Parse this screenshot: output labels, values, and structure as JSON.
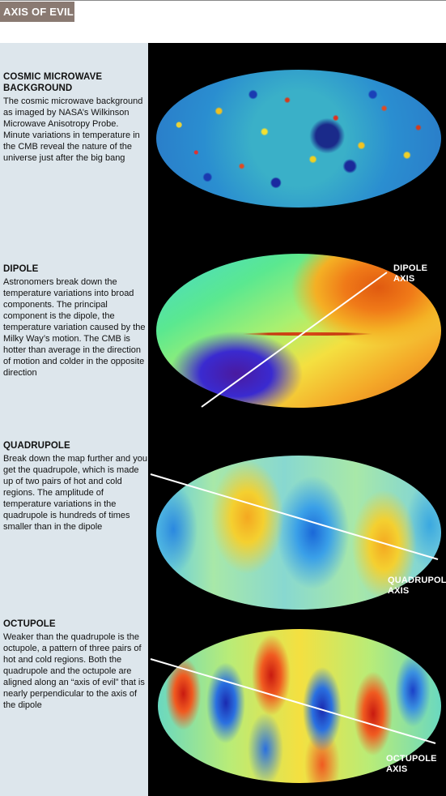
{
  "header": {
    "title": "AXIS OF EVIL"
  },
  "sections": [
    {
      "heading": "COSMIC MICROWAVE BACKGROUND",
      "body": "The cosmic microwave background as imaged by NASA’s Wilkinson Microwave Anisotropy Probe. Minute variations in temperature in the CMB reveal the nature of the universe just after the big bang"
    },
    {
      "heading": "DIPOLE",
      "body": "Astronomers break down the temperature variations into broad components. The principal component is the dipole, the temperature variation caused by the Milky Way’s motion. The CMB is hotter than average in the direction of motion and colder in the opposite direction",
      "axis_label": "DIPOLE AXIS"
    },
    {
      "heading": "QUADRUPOLE",
      "body": "Break down the map further and you get the quadrupole, which is made up of two pairs of hot and cold regions. The amplitude of temperature variations in the quadrupole is hundreds of times smaller than in the dipole",
      "axis_label_line1": "QUADRUPOLE",
      "axis_label_line2": "AXIS"
    },
    {
      "heading": "OCTUPOLE",
      "body": "Weaker than the quadrupole is the octupole, a pattern of three pairs of hot and cold regions. Both the quadrupole and the octupole are aligned along an “axis of evil” that is nearly perpendicular to the axis of the dipole",
      "axis_label_line1": "OCTUPOLE",
      "axis_label_line2": "AXIS"
    }
  ],
  "colors": {
    "title_tag": "#8a7a72",
    "left_panel": "#dde6ec",
    "right_panel": "#000000",
    "hot": "#d42a10",
    "warm": "#f4d020",
    "neutral": "#7ad8b8",
    "cool": "#2a9ae0",
    "cold": "#1a2aa0"
  }
}
